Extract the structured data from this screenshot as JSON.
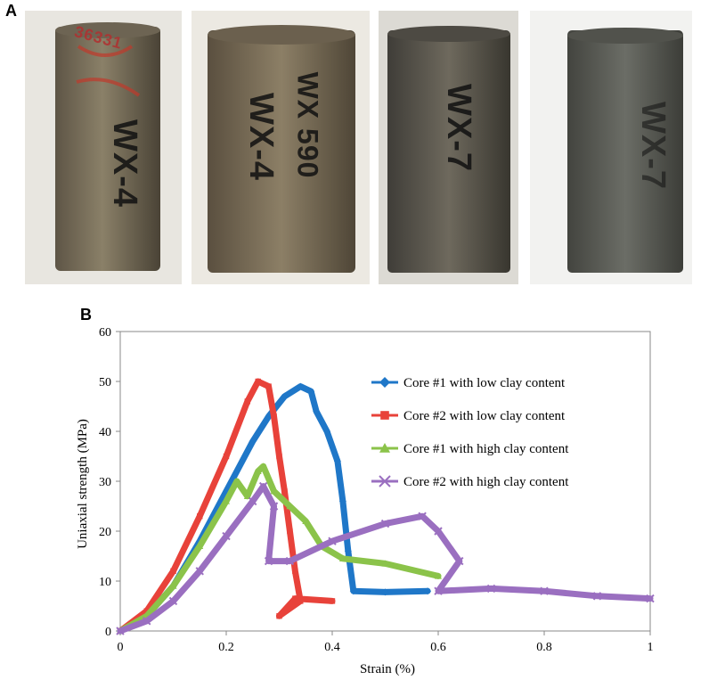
{
  "panels": {
    "a_label": "A",
    "b_label": "B"
  },
  "photos": [
    {
      "label": "WX-4",
      "annotation": "36331"
    },
    {
      "label": "WX-4",
      "second_label": "WX 590"
    },
    {
      "label": "WX-7"
    },
    {
      "label": "WX-7"
    }
  ],
  "chart_data": {
    "type": "line",
    "xlabel": "Strain (%)",
    "ylabel": "Uniaxial strength (MPa)",
    "xlim": [
      0,
      1
    ],
    "ylim": [
      0,
      60
    ],
    "x_ticks": [
      "0",
      "0.2",
      "0.4",
      "0.6",
      "0.8",
      "1"
    ],
    "y_ticks": [
      "0",
      "10",
      "20",
      "30",
      "40",
      "50",
      "60"
    ],
    "grid": false,
    "legend_placement": "top-right",
    "series": [
      {
        "name": "Core #1 with low clay content",
        "color": "#1f77c8",
        "marker": "diamond",
        "points": [
          [
            0,
            0
          ],
          [
            0.05,
            3
          ],
          [
            0.1,
            9
          ],
          [
            0.15,
            18
          ],
          [
            0.2,
            28
          ],
          [
            0.25,
            38
          ],
          [
            0.28,
            43
          ],
          [
            0.31,
            47
          ],
          [
            0.34,
            49
          ],
          [
            0.36,
            48
          ],
          [
            0.37,
            44
          ],
          [
            0.39,
            40
          ],
          [
            0.41,
            34
          ],
          [
            0.42,
            26
          ],
          [
            0.43,
            16
          ],
          [
            0.44,
            8
          ],
          [
            0.5,
            7.8
          ],
          [
            0.58,
            8
          ]
        ]
      },
      {
        "name": "Core #2 with low clay content",
        "color": "#e8423a",
        "marker": "square",
        "points": [
          [
            0,
            0
          ],
          [
            0.05,
            4
          ],
          [
            0.1,
            12
          ],
          [
            0.15,
            23
          ],
          [
            0.2,
            35
          ],
          [
            0.24,
            46
          ],
          [
            0.26,
            50
          ],
          [
            0.28,
            49
          ],
          [
            0.29,
            43
          ],
          [
            0.3,
            35
          ],
          [
            0.31,
            28
          ],
          [
            0.32,
            20
          ],
          [
            0.33,
            12
          ],
          [
            0.34,
            6
          ],
          [
            0.3,
            3
          ],
          [
            0.33,
            6.5
          ],
          [
            0.4,
            6
          ]
        ]
      },
      {
        "name": "Core #1 with high clay content",
        "color": "#8bc34a",
        "marker": "triangle",
        "points": [
          [
            0,
            0
          ],
          [
            0.05,
            3
          ],
          [
            0.1,
            9
          ],
          [
            0.15,
            17
          ],
          [
            0.2,
            26
          ],
          [
            0.22,
            30
          ],
          [
            0.24,
            27
          ],
          [
            0.26,
            32
          ],
          [
            0.27,
            33
          ],
          [
            0.29,
            28
          ],
          [
            0.32,
            25
          ],
          [
            0.35,
            22
          ],
          [
            0.38,
            17
          ],
          [
            0.42,
            14.5
          ],
          [
            0.5,
            13.5
          ],
          [
            0.6,
            11
          ]
        ]
      },
      {
        "name": "Core #2 with high clay content",
        "color": "#9a6fc0",
        "marker": "x",
        "points": [
          [
            0,
            0
          ],
          [
            0.05,
            2
          ],
          [
            0.1,
            6
          ],
          [
            0.15,
            12
          ],
          [
            0.2,
            19
          ],
          [
            0.25,
            26
          ],
          [
            0.27,
            29
          ],
          [
            0.29,
            25
          ],
          [
            0.28,
            14
          ],
          [
            0.32,
            14
          ],
          [
            0.4,
            18
          ],
          [
            0.5,
            21.5
          ],
          [
            0.57,
            23
          ],
          [
            0.6,
            20
          ],
          [
            0.64,
            14
          ],
          [
            0.6,
            8
          ],
          [
            0.7,
            8.5
          ],
          [
            0.8,
            8
          ],
          [
            0.9,
            7
          ],
          [
            1,
            6.5
          ]
        ]
      }
    ]
  }
}
